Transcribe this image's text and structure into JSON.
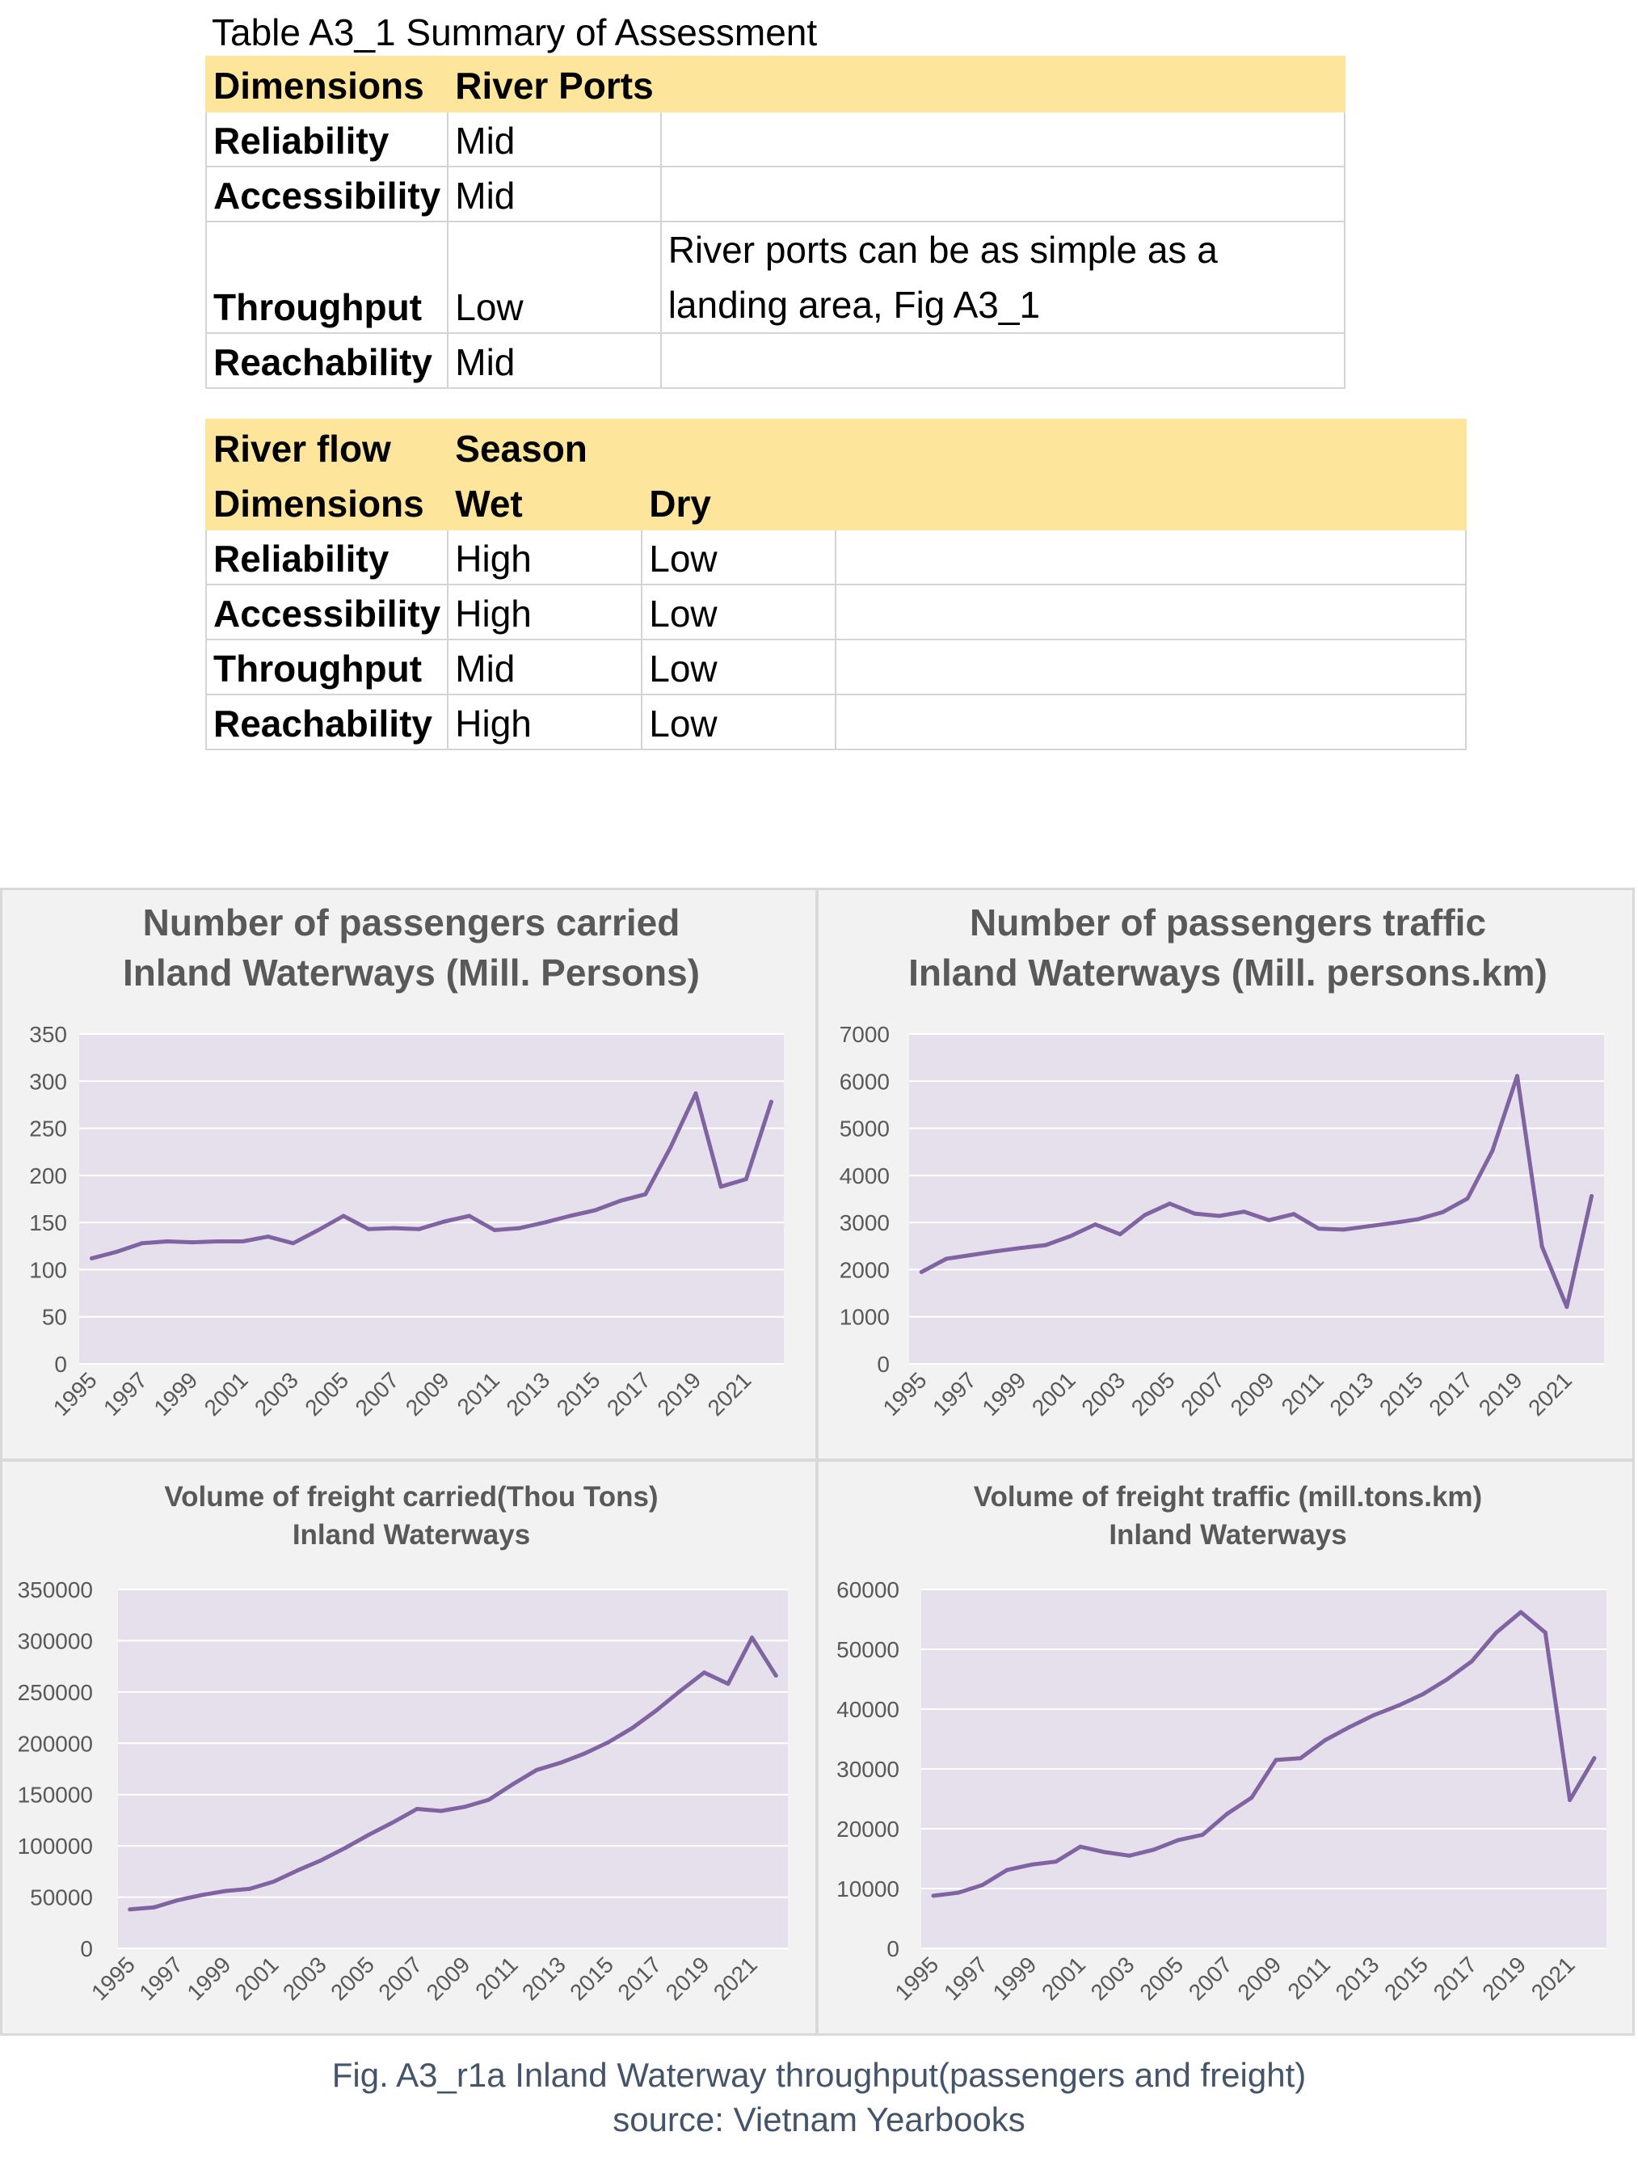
{
  "table1": {
    "caption": "Table A3_1 Summary of Assessment",
    "headers": [
      "Dimensions",
      "River Ports"
    ],
    "rows": [
      {
        "dimension": "Reliability",
        "value": "Mid",
        "note": ""
      },
      {
        "dimension": "Accessibility",
        "value": "Mid",
        "note": ""
      },
      {
        "dimension": "Throughput",
        "value": "Low",
        "note": "River ports can be as simple as a landing area, Fig A3_1"
      },
      {
        "dimension": "Reachability",
        "value": "Mid",
        "note": ""
      }
    ]
  },
  "table2": {
    "header_row1": [
      "River flow",
      "Season"
    ],
    "header_row2": [
      "Dimensions",
      "Wet",
      "Dry"
    ],
    "rows": [
      {
        "dimension": "Reliability",
        "wet": "High",
        "dry": "Low"
      },
      {
        "dimension": "Accessibility",
        "wet": "High",
        "dry": "Low"
      },
      {
        "dimension": "Throughput",
        "wet": "Mid",
        "dry": "Low"
      },
      {
        "dimension": "Reachability",
        "wet": "High",
        "dry": "Low"
      }
    ]
  },
  "style": {
    "line_color": "#8064a2",
    "plot_bg": "#e6e0ec",
    "panel_bg": "#f2f2f2",
    "grid_color": "#ffffff",
    "header_fill": "#fde69b",
    "caption_color": "#44546a"
  },
  "chart_data": [
    {
      "type": "line",
      "title_lines": [
        "Number of passengers carried",
        "Inland Waterways (Mill. Persons)"
      ],
      "x": [
        1995,
        1996,
        1997,
        1998,
        1999,
        2000,
        2001,
        2002,
        2003,
        2004,
        2005,
        2006,
        2007,
        2008,
        2009,
        2010,
        2011,
        2012,
        2013,
        2014,
        2015,
        2016,
        2017,
        2018,
        2019,
        2020,
        2021,
        2022
      ],
      "x_tick_labels": [
        "1995",
        "1997",
        "1999",
        "2001",
        "2003",
        "2005",
        "2007",
        "2009",
        "2011",
        "2013",
        "2015",
        "2017",
        "2019",
        "2021"
      ],
      "series": [
        {
          "values": [
            112,
            119,
            128,
            130,
            129,
            130,
            130,
            135,
            128,
            142,
            157,
            143,
            144,
            143,
            151,
            157,
            142,
            144,
            150,
            157,
            163,
            173,
            180,
            230,
            287,
            188,
            196,
            278
          ]
        }
      ],
      "ylim": [
        0,
        350
      ],
      "y_ticks": [
        0,
        50,
        100,
        150,
        200,
        250,
        300,
        350
      ],
      "y_tick_labels": [
        "0",
        "50",
        "100",
        "150",
        "200",
        "250",
        "300",
        "350"
      ]
    },
    {
      "type": "line",
      "title_lines": [
        "Number of passengers traffic",
        "Inland Waterways (Mill. persons.km)"
      ],
      "x": [
        1995,
        1996,
        1997,
        1998,
        1999,
        2000,
        2001,
        2002,
        2003,
        2004,
        2005,
        2006,
        2007,
        2008,
        2009,
        2010,
        2011,
        2012,
        2013,
        2014,
        2015,
        2016,
        2017,
        2018,
        2019,
        2020,
        2021,
        2022
      ],
      "x_tick_labels": [
        "1995",
        "1997",
        "1999",
        "2001",
        "2003",
        "2005",
        "2007",
        "2009",
        "2011",
        "2013",
        "2015",
        "2017",
        "2019",
        "2021"
      ],
      "series": [
        {
          "values": [
            1950,
            2230,
            2310,
            2390,
            2460,
            2520,
            2710,
            2960,
            2750,
            3160,
            3400,
            3190,
            3140,
            3230,
            3050,
            3180,
            2870,
            2850,
            2920,
            2990,
            3070,
            3220,
            3510,
            4520,
            6110,
            2490,
            1210,
            3560
          ]
        }
      ],
      "ylim": [
        0,
        7000
      ],
      "y_ticks": [
        0,
        1000,
        2000,
        3000,
        4000,
        5000,
        6000,
        7000
      ],
      "y_tick_labels": [
        "0",
        "1000",
        "2000",
        "3000",
        "4000",
        "5000",
        "6000",
        "7000"
      ]
    },
    {
      "type": "line",
      "title_lines": [
        "Volume of freight carried(Thou Tons)",
        "Inland Waterways"
      ],
      "x": [
        1995,
        1996,
        1997,
        1998,
        1999,
        2000,
        2001,
        2002,
        2003,
        2004,
        2005,
        2006,
        2007,
        2008,
        2009,
        2010,
        2011,
        2012,
        2013,
        2014,
        2015,
        2016,
        2017,
        2018,
        2019,
        2020,
        2021,
        2022
      ],
      "x_tick_labels": [
        "1995",
        "1997",
        "1999",
        "2001",
        "2003",
        "2005",
        "2007",
        "2009",
        "2011",
        "2013",
        "2015",
        "2017",
        "2019",
        "2021"
      ],
      "series": [
        {
          "values": [
            38000,
            40000,
            47000,
            52000,
            56000,
            58000,
            65000,
            76000,
            86000,
            98000,
            111000,
            123000,
            136000,
            134000,
            138000,
            145000,
            160000,
            174000,
            181000,
            190000,
            201000,
            215000,
            232000,
            251000,
            269000,
            258000,
            303000,
            266000
          ]
        }
      ],
      "ylim": [
        0,
        350000
      ],
      "y_ticks": [
        0,
        50000,
        100000,
        150000,
        200000,
        250000,
        300000,
        350000
      ],
      "y_tick_labels": [
        "0",
        "50000",
        "100000",
        "150000",
        "200000",
        "250000",
        "300000",
        "350000"
      ]
    },
    {
      "type": "line",
      "title_lines": [
        "Volume of freight traffic (mill.tons.km)",
        "Inland Waterways"
      ],
      "x": [
        1995,
        1996,
        1997,
        1998,
        1999,
        2000,
        2001,
        2002,
        2003,
        2004,
        2005,
        2006,
        2007,
        2008,
        2009,
        2010,
        2011,
        2012,
        2013,
        2014,
        2015,
        2016,
        2017,
        2018,
        2019,
        2020,
        2021,
        2022
      ],
      "x_tick_labels": [
        "1995",
        "1997",
        "1999",
        "2001",
        "2003",
        "2005",
        "2007",
        "2009",
        "2011",
        "2013",
        "2015",
        "2017",
        "2019",
        "2021"
      ],
      "series": [
        {
          "values": [
            8800,
            9300,
            10600,
            13100,
            14000,
            14500,
            17000,
            16100,
            15500,
            16500,
            18100,
            19000,
            22500,
            25200,
            31500,
            31800,
            34800,
            37000,
            39000,
            40600,
            42500,
            45000,
            48000,
            52800,
            56200,
            52800,
            24800,
            31800
          ]
        }
      ],
      "ylim": [
        0,
        60000
      ],
      "y_ticks": [
        0,
        10000,
        20000,
        30000,
        40000,
        50000,
        60000
      ],
      "y_tick_labels": [
        "0",
        "10000",
        "20000",
        "30000",
        "40000",
        "50000",
        "60000"
      ]
    }
  ],
  "figure_caption": {
    "line1": "Fig. A3_r1a Inland Waterway throughput(passengers and freight)",
    "line2": "source: Vietnam Yearbooks"
  }
}
